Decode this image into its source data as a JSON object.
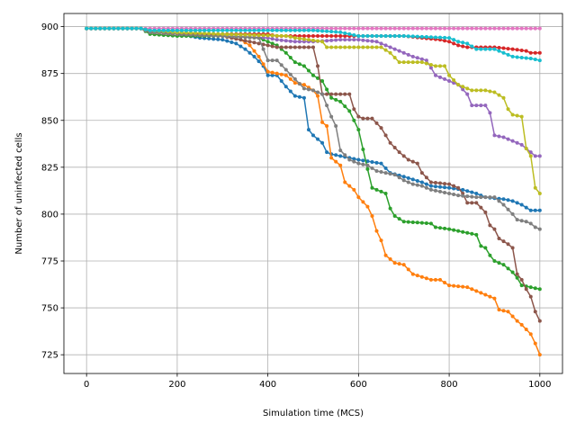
{
  "chart_data": {
    "type": "line",
    "title": "",
    "xlabel": "Simulation time (MCS)",
    "ylabel": "Number of uninfected cells",
    "xlim": [
      -50,
      1050
    ],
    "ylim": [
      715,
      907
    ],
    "xticks": [
      0,
      200,
      400,
      600,
      800,
      1000
    ],
    "yticks": [
      725,
      750,
      775,
      800,
      825,
      850,
      875,
      900
    ],
    "grid": true,
    "legend": "none",
    "markers": true,
    "series": [
      {
        "color": "#1f77b4",
        "points": [
          [
            0,
            899
          ],
          [
            60,
            899
          ],
          [
            120,
            899
          ],
          [
            140,
            898
          ],
          [
            200,
            896
          ],
          [
            250,
            894
          ],
          [
            300,
            893
          ],
          [
            330,
            891
          ],
          [
            350,
            888
          ],
          [
            370,
            884
          ],
          [
            390,
            879
          ],
          [
            400,
            874
          ],
          [
            420,
            874
          ],
          [
            440,
            868
          ],
          [
            460,
            863
          ],
          [
            480,
            862
          ],
          [
            490,
            845
          ],
          [
            500,
            842
          ],
          [
            520,
            838
          ],
          [
            530,
            833
          ],
          [
            540,
            832
          ],
          [
            560,
            831
          ],
          [
            580,
            830
          ],
          [
            600,
            829
          ],
          [
            650,
            827
          ],
          [
            670,
            822
          ],
          [
            700,
            820
          ],
          [
            740,
            817
          ],
          [
            760,
            815
          ],
          [
            800,
            814
          ],
          [
            830,
            813
          ],
          [
            860,
            811
          ],
          [
            880,
            809
          ],
          [
            920,
            808
          ],
          [
            940,
            807
          ],
          [
            960,
            805
          ],
          [
            980,
            802
          ],
          [
            1000,
            802
          ]
        ]
      },
      {
        "color": "#ff7f0e",
        "points": [
          [
            0,
            899
          ],
          [
            120,
            899
          ],
          [
            140,
            897
          ],
          [
            200,
            896
          ],
          [
            280,
            896
          ],
          [
            340,
            893
          ],
          [
            360,
            890
          ],
          [
            380,
            884
          ],
          [
            400,
            876
          ],
          [
            420,
            875
          ],
          [
            440,
            874
          ],
          [
            460,
            870
          ],
          [
            480,
            869
          ],
          [
            500,
            866
          ],
          [
            510,
            863
          ],
          [
            520,
            849
          ],
          [
            530,
            847
          ],
          [
            540,
            830
          ],
          [
            560,
            826
          ],
          [
            570,
            817
          ],
          [
            590,
            813
          ],
          [
            600,
            809
          ],
          [
            620,
            804
          ],
          [
            630,
            799
          ],
          [
            640,
            791
          ],
          [
            650,
            786
          ],
          [
            660,
            778
          ],
          [
            680,
            774
          ],
          [
            700,
            773
          ],
          [
            720,
            768
          ],
          [
            760,
            765
          ],
          [
            780,
            765
          ],
          [
            800,
            762
          ],
          [
            840,
            761
          ],
          [
            860,
            759
          ],
          [
            880,
            757
          ],
          [
            900,
            755
          ],
          [
            910,
            749
          ],
          [
            930,
            748
          ],
          [
            950,
            743
          ],
          [
            960,
            741
          ],
          [
            980,
            736
          ],
          [
            990,
            731
          ],
          [
            1000,
            725
          ]
        ]
      },
      {
        "color": "#2ca02c",
        "points": [
          [
            0,
            899
          ],
          [
            120,
            899
          ],
          [
            140,
            896
          ],
          [
            200,
            895
          ],
          [
            300,
            895
          ],
          [
            380,
            894
          ],
          [
            400,
            892
          ],
          [
            420,
            890
          ],
          [
            440,
            886
          ],
          [
            460,
            881
          ],
          [
            480,
            879
          ],
          [
            500,
            874
          ],
          [
            520,
            871
          ],
          [
            540,
            862
          ],
          [
            560,
            860
          ],
          [
            580,
            855
          ],
          [
            600,
            845
          ],
          [
            620,
            824
          ],
          [
            630,
            814
          ],
          [
            660,
            811
          ],
          [
            670,
            803
          ],
          [
            680,
            799
          ],
          [
            700,
            796
          ],
          [
            760,
            795
          ],
          [
            770,
            793
          ],
          [
            800,
            792
          ],
          [
            820,
            791
          ],
          [
            860,
            789
          ],
          [
            870,
            783
          ],
          [
            880,
            782
          ],
          [
            890,
            778
          ],
          [
            900,
            775
          ],
          [
            920,
            773
          ],
          [
            940,
            769
          ],
          [
            950,
            766
          ],
          [
            960,
            762
          ],
          [
            1000,
            760
          ]
        ]
      },
      {
        "color": "#d62728",
        "points": [
          [
            0,
            899
          ],
          [
            120,
            899
          ],
          [
            140,
            897
          ],
          [
            200,
            896
          ],
          [
            300,
            896
          ],
          [
            400,
            896
          ],
          [
            420,
            895
          ],
          [
            500,
            895
          ],
          [
            600,
            895
          ],
          [
            700,
            895
          ],
          [
            740,
            894
          ],
          [
            780,
            893
          ],
          [
            800,
            892
          ],
          [
            820,
            890
          ],
          [
            840,
            889
          ],
          [
            900,
            889
          ],
          [
            940,
            888
          ],
          [
            970,
            887
          ],
          [
            980,
            886
          ],
          [
            1000,
            886
          ]
        ]
      },
      {
        "color": "#9467bd",
        "points": [
          [
            0,
            899
          ],
          [
            120,
            899
          ],
          [
            140,
            897
          ],
          [
            200,
            896
          ],
          [
            300,
            895
          ],
          [
            400,
            894
          ],
          [
            420,
            893
          ],
          [
            460,
            892
          ],
          [
            500,
            892
          ],
          [
            560,
            893
          ],
          [
            600,
            893
          ],
          [
            640,
            892
          ],
          [
            660,
            890
          ],
          [
            680,
            888
          ],
          [
            700,
            886
          ],
          [
            720,
            884
          ],
          [
            750,
            882
          ],
          [
            770,
            874
          ],
          [
            790,
            872
          ],
          [
            800,
            871
          ],
          [
            820,
            869
          ],
          [
            840,
            864
          ],
          [
            850,
            858
          ],
          [
            880,
            858
          ],
          [
            890,
            854
          ],
          [
            900,
            842
          ],
          [
            920,
            841
          ],
          [
            940,
            839
          ],
          [
            950,
            838
          ],
          [
            960,
            837
          ],
          [
            970,
            835
          ],
          [
            980,
            833
          ],
          [
            990,
            831
          ],
          [
            1000,
            831
          ]
        ]
      },
      {
        "color": "#8c564b",
        "points": [
          [
            0,
            899
          ],
          [
            120,
            899
          ],
          [
            140,
            897
          ],
          [
            200,
            896
          ],
          [
            300,
            895
          ],
          [
            360,
            892
          ],
          [
            400,
            890
          ],
          [
            420,
            889
          ],
          [
            500,
            889
          ],
          [
            510,
            879
          ],
          [
            520,
            864
          ],
          [
            560,
            864
          ],
          [
            580,
            864
          ],
          [
            590,
            856
          ],
          [
            600,
            852
          ],
          [
            610,
            851
          ],
          [
            630,
            851
          ],
          [
            650,
            846
          ],
          [
            670,
            838
          ],
          [
            690,
            833
          ],
          [
            710,
            829
          ],
          [
            730,
            827
          ],
          [
            740,
            822
          ],
          [
            760,
            817
          ],
          [
            800,
            816
          ],
          [
            820,
            814
          ],
          [
            830,
            811
          ],
          [
            840,
            806
          ],
          [
            860,
            806
          ],
          [
            880,
            801
          ],
          [
            890,
            794
          ],
          [
            900,
            792
          ],
          [
            910,
            787
          ],
          [
            930,
            784
          ],
          [
            940,
            782
          ],
          [
            950,
            768
          ],
          [
            960,
            765
          ],
          [
            970,
            760
          ],
          [
            980,
            756
          ],
          [
            990,
            748
          ],
          [
            1000,
            743
          ]
        ]
      },
      {
        "color": "#e377c2",
        "points": [
          [
            0,
            899
          ],
          [
            200,
            899
          ],
          [
            400,
            899
          ],
          [
            600,
            899
          ],
          [
            800,
            899
          ],
          [
            900,
            899
          ],
          [
            1000,
            899
          ]
        ]
      },
      {
        "color": "#7f7f7f",
        "points": [
          [
            0,
            899
          ],
          [
            120,
            899
          ],
          [
            140,
            897
          ],
          [
            200,
            896
          ],
          [
            300,
            895
          ],
          [
            380,
            894
          ],
          [
            400,
            882
          ],
          [
            420,
            882
          ],
          [
            440,
            877
          ],
          [
            460,
            872
          ],
          [
            480,
            867
          ],
          [
            500,
            866
          ],
          [
            520,
            864
          ],
          [
            540,
            852
          ],
          [
            550,
            847
          ],
          [
            560,
            834
          ],
          [
            580,
            829
          ],
          [
            600,
            827
          ],
          [
            620,
            826
          ],
          [
            640,
            823
          ],
          [
            680,
            821
          ],
          [
            700,
            818
          ],
          [
            720,
            816
          ],
          [
            740,
            815
          ],
          [
            760,
            813
          ],
          [
            800,
            811
          ],
          [
            820,
            810
          ],
          [
            860,
            809
          ],
          [
            900,
            809
          ],
          [
            920,
            805
          ],
          [
            940,
            800
          ],
          [
            950,
            797
          ],
          [
            970,
            796
          ],
          [
            980,
            795
          ],
          [
            990,
            793
          ],
          [
            1000,
            792
          ]
        ]
      },
      {
        "color": "#bcbd22",
        "points": [
          [
            0,
            899
          ],
          [
            120,
            899
          ],
          [
            140,
            898
          ],
          [
            200,
            897
          ],
          [
            300,
            896
          ],
          [
            440,
            895
          ],
          [
            460,
            894
          ],
          [
            520,
            892
          ],
          [
            530,
            889
          ],
          [
            580,
            889
          ],
          [
            620,
            889
          ],
          [
            650,
            889
          ],
          [
            670,
            886
          ],
          [
            690,
            881
          ],
          [
            740,
            881
          ],
          [
            770,
            879
          ],
          [
            790,
            879
          ],
          [
            800,
            874
          ],
          [
            820,
            869
          ],
          [
            850,
            866
          ],
          [
            880,
            866
          ],
          [
            900,
            865
          ],
          [
            920,
            862
          ],
          [
            930,
            856
          ],
          [
            940,
            853
          ],
          [
            960,
            852
          ],
          [
            970,
            835
          ],
          [
            980,
            831
          ],
          [
            990,
            814
          ],
          [
            1000,
            811
          ]
        ]
      },
      {
        "color": "#17becf",
        "points": [
          [
            0,
            899
          ],
          [
            120,
            899
          ],
          [
            140,
            898
          ],
          [
            200,
            898
          ],
          [
            300,
            898
          ],
          [
            400,
            898
          ],
          [
            500,
            898
          ],
          [
            560,
            897
          ],
          [
            600,
            895
          ],
          [
            700,
            895
          ],
          [
            800,
            894
          ],
          [
            820,
            892
          ],
          [
            840,
            891
          ],
          [
            860,
            888
          ],
          [
            900,
            888
          ],
          [
            920,
            886
          ],
          [
            940,
            884
          ],
          [
            980,
            883
          ],
          [
            1000,
            882
          ]
        ]
      }
    ]
  }
}
